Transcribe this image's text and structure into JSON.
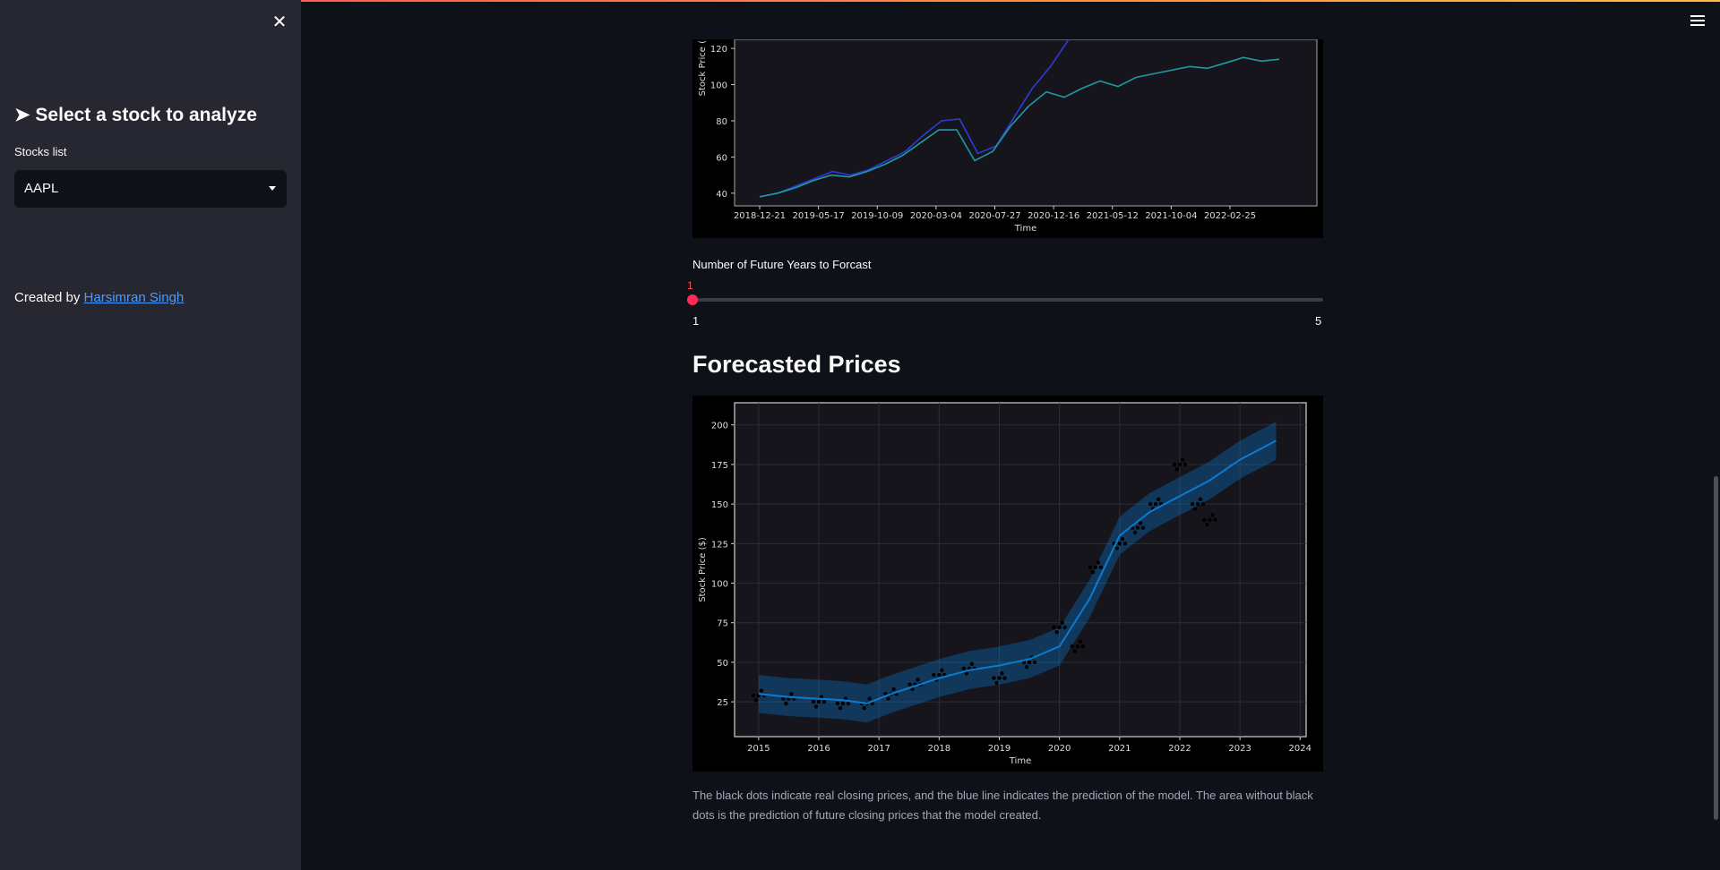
{
  "sidebar": {
    "title": "➤ Select a stock to analyze",
    "stocks_label": "Stocks list",
    "selected_stock": "AAPL",
    "created_prefix": "Created by",
    "author": "Harsimran Singh"
  },
  "slider": {
    "label": "Number of Future Years to Forcast",
    "value": "1",
    "min": "1",
    "max": "5"
  },
  "forecast_title": "Forecasted Prices",
  "caption": "The black dots indicate real closing prices, and the blue line indicates the prediction of the model. The area without black dots is the prediction of future closing prices that the model created.",
  "colors": {
    "accent": "#ff4b4b",
    "link": "#4c9bff",
    "sidebar_bg": "#262730",
    "main_bg": "#0e1117"
  },
  "chart_data": [
    {
      "type": "line",
      "xlabel": "Time",
      "ylabel": "Stock Price (",
      "x_ticks": [
        "2018-12-21",
        "2019-05-17",
        "2019-10-09",
        "2020-03-04",
        "2020-07-27",
        "2020-12-16",
        "2021-05-12",
        "2021-10-04",
        "2022-02-25"
      ],
      "y_ticks": [
        40,
        60,
        80,
        100,
        120
      ],
      "ylim": [
        33,
        125
      ],
      "series": [
        {
          "color": "#2f3bd6",
          "values": [
            38,
            40,
            44,
            48,
            52,
            50,
            53,
            58,
            63,
            72,
            80,
            81,
            62,
            66,
            82,
            98,
            110,
            125
          ]
        },
        {
          "color": "#1f9aa3",
          "values": [
            38,
            40,
            43,
            47,
            50,
            49,
            52,
            56,
            61,
            68,
            75,
            75,
            58,
            63,
            77,
            88,
            96,
            93,
            98,
            102,
            99,
            104,
            106,
            108,
            110,
            109,
            112,
            115,
            113,
            114
          ]
        }
      ]
    },
    {
      "type": "line",
      "xlabel": "Time",
      "ylabel": "Stock Price ($)",
      "x_ticks": [
        "2015",
        "2016",
        "2017",
        "2018",
        "2019",
        "2020",
        "2021",
        "2022",
        "2023",
        "2024"
      ],
      "y_ticks": [
        25,
        50,
        75,
        100,
        125,
        150,
        175,
        200
      ],
      "ylim": [
        3,
        214
      ],
      "xlim": [
        2014.6,
        2024.1
      ],
      "series": [
        {
          "name": "forecast",
          "color": "#0a7bd1",
          "x": [
            2015,
            2015.5,
            2016,
            2016.4,
            2016.8,
            2017.2,
            2017.6,
            2018,
            2018.5,
            2019,
            2019.5,
            2020,
            2020.5,
            2021,
            2021.5,
            2022,
            2022.5,
            2023,
            2023.6
          ],
          "values": [
            30,
            28,
            27,
            26,
            24,
            30,
            35,
            40,
            45,
            48,
            52,
            60,
            90,
            130,
            145,
            155,
            165,
            178,
            190
          ]
        }
      ],
      "actual_points": {
        "x": [
          2015,
          2015.5,
          2016,
          2016.4,
          2016.8,
          2017.2,
          2017.6,
          2018,
          2018.5,
          2019,
          2019.5,
          2020,
          2020.3,
          2020.6,
          2021,
          2021.3,
          2021.6,
          2022,
          2022.3,
          2022.5
        ],
        "values": [
          29,
          27,
          25,
          24,
          24,
          30,
          36,
          42,
          46,
          40,
          50,
          72,
          60,
          110,
          125,
          135,
          150,
          175,
          150,
          140
        ]
      }
    }
  ]
}
